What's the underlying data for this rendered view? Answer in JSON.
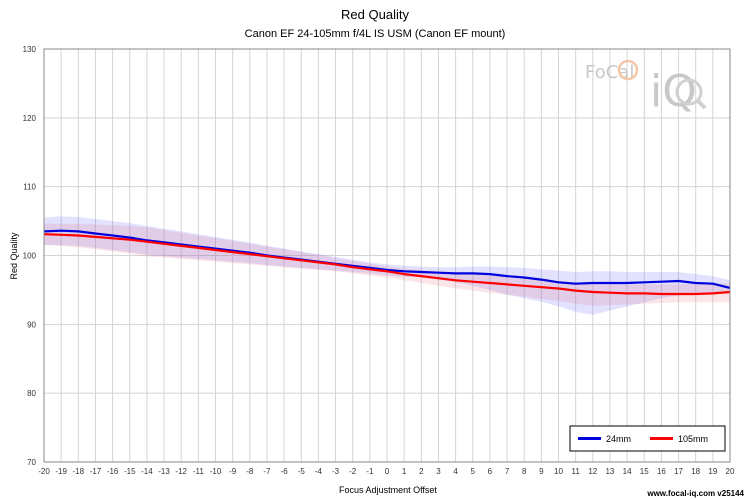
{
  "chart_data": {
    "type": "line",
    "title": "Red Quality",
    "subtitle": "Canon EF 24-105mm f/4L IS USM (Canon EF mount)",
    "xlabel": "Focus Adjustment Offset",
    "ylabel": "Red Quality",
    "xlim": [
      -20,
      20
    ],
    "ylim": [
      70,
      130
    ],
    "yticks": [
      70,
      80,
      90,
      100,
      110,
      120,
      130
    ],
    "grid": true,
    "legend_position": "bottom-right",
    "x": [
      -20,
      -19,
      -18,
      -17,
      -16,
      -15,
      -14,
      -13,
      -12,
      -11,
      -10,
      -9,
      -8,
      -7,
      -6,
      -5,
      -4,
      -3,
      -2,
      -1,
      0,
      1,
      2,
      3,
      4,
      5,
      6,
      7,
      8,
      9,
      10,
      11,
      12,
      13,
      14,
      15,
      16,
      17,
      18,
      19,
      20
    ],
    "series": [
      {
        "name": "24mm",
        "color": "#0000dd",
        "values": [
          103.5,
          103.6,
          103.5,
          103.2,
          102.9,
          102.6,
          102.2,
          101.9,
          101.6,
          101.3,
          101.0,
          100.7,
          100.4,
          100.0,
          99.7,
          99.4,
          99.1,
          98.8,
          98.5,
          98.2,
          97.9,
          97.7,
          97.6,
          97.5,
          97.4,
          97.4,
          97.3,
          97.0,
          96.8,
          96.5,
          96.1,
          95.9,
          96.0,
          96.0,
          96.0,
          96.1,
          96.2,
          96.3,
          96.0,
          95.9,
          95.3
        ],
        "band_upper": [
          105.5,
          105.7,
          105.6,
          105.3,
          105.0,
          104.7,
          104.3,
          103.9,
          103.5,
          103.1,
          102.7,
          102.3,
          101.9,
          101.4,
          101.0,
          100.6,
          100.2,
          99.8,
          99.4,
          99.0,
          98.7,
          98.5,
          98.4,
          98.3,
          98.3,
          98.4,
          98.4,
          98.3,
          98.2,
          98.0,
          97.8,
          97.6,
          97.7,
          97.7,
          97.6,
          97.6,
          97.6,
          97.6,
          97.3,
          97.0,
          96.4
        ],
        "band_lower": [
          101.5,
          101.5,
          101.4,
          101.1,
          100.8,
          100.5,
          100.1,
          99.9,
          99.7,
          99.5,
          99.3,
          99.1,
          98.9,
          98.6,
          98.4,
          98.2,
          98.0,
          97.8,
          97.6,
          97.4,
          97.1,
          96.9,
          96.8,
          96.5,
          96.1,
          95.6,
          95.0,
          94.3,
          93.8,
          93.3,
          92.6,
          91.8,
          91.4,
          92.0,
          92.6,
          93.2,
          93.8,
          94.2,
          94.4,
          94.6,
          94.4
        ]
      },
      {
        "name": "105mm",
        "color": "#ff0000",
        "values": [
          103.1,
          103.0,
          102.9,
          102.7,
          102.5,
          102.3,
          102.0,
          101.7,
          101.4,
          101.1,
          100.8,
          100.5,
          100.2,
          99.9,
          99.6,
          99.3,
          99.0,
          98.7,
          98.3,
          98.0,
          97.7,
          97.3,
          97.0,
          96.7,
          96.4,
          96.2,
          96.0,
          95.8,
          95.6,
          95.4,
          95.2,
          94.9,
          94.7,
          94.6,
          94.5,
          94.5,
          94.4,
          94.4,
          94.4,
          94.5,
          94.7
        ],
        "band_upper": [
          104.6,
          104.6,
          104.6,
          104.5,
          104.4,
          104.3,
          104.1,
          103.7,
          103.3,
          102.9,
          102.5,
          102.1,
          101.7,
          101.3,
          100.9,
          100.5,
          100.1,
          99.6,
          99.2,
          98.8,
          98.4,
          98.1,
          97.9,
          97.7,
          97.5,
          97.3,
          97.1,
          96.9,
          96.7,
          96.5,
          96.3,
          96.1,
          95.9,
          95.8,
          95.8,
          95.8,
          95.8,
          95.8,
          95.9,
          95.9,
          96.0
        ],
        "band_lower": [
          101.6,
          101.4,
          101.2,
          100.9,
          100.6,
          100.3,
          99.9,
          99.7,
          99.5,
          99.3,
          99.1,
          98.9,
          98.7,
          98.5,
          98.3,
          98.1,
          97.9,
          97.7,
          97.4,
          97.1,
          96.8,
          96.4,
          96.0,
          95.6,
          95.2,
          94.9,
          94.6,
          94.3,
          94.0,
          93.7,
          93.4,
          93.0,
          92.7,
          92.8,
          92.9,
          93.0,
          93.1,
          93.2,
          93.2,
          93.2,
          93.2
        ]
      }
    ]
  },
  "watermark": {
    "brand": "FoCal",
    "suffix": "iQ"
  },
  "footer": {
    "text": "www.focal-iq.com v25144"
  }
}
